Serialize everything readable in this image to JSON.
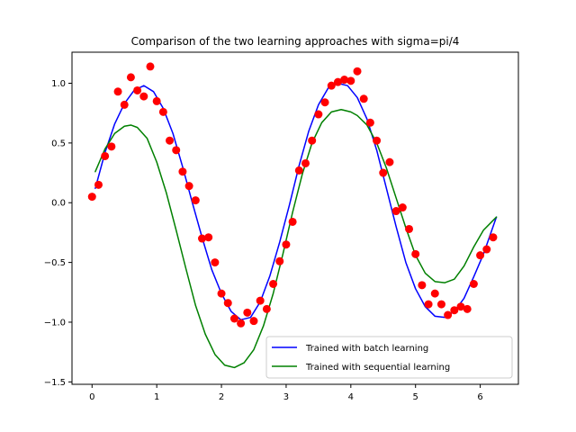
{
  "chart_data": {
    "type": "line",
    "title": "Comparison of the two learning approaches with sigma=pi/4",
    "xlabel": "",
    "ylabel": "",
    "xlim": [
      -0.31,
      6.59
    ],
    "ylim": [
      -1.52,
      1.26
    ],
    "xticks": [
      0,
      1,
      2,
      3,
      4,
      5,
      6
    ],
    "yticks": [
      -1.5,
      -1.0,
      -0.5,
      0.0,
      0.5,
      1.0
    ],
    "ytick_labels": [
      "−1.5",
      "−1.0",
      "−0.5",
      "0.0",
      "0.5",
      "1.0"
    ],
    "grid": false,
    "legend_position": "lower-right",
    "series": [
      {
        "name": "Trained with batch learning",
        "kind": "line",
        "color": "#0000ff",
        "x": [
          0.05,
          0.2,
          0.35,
          0.5,
          0.65,
          0.8,
          0.95,
          1.1,
          1.25,
          1.4,
          1.55,
          1.7,
          1.85,
          2.0,
          2.15,
          2.3,
          2.45,
          2.6,
          2.75,
          2.9,
          3.05,
          3.2,
          3.35,
          3.5,
          3.65,
          3.8,
          3.95,
          4.1,
          4.25,
          4.4,
          4.55,
          4.7,
          4.85,
          5.0,
          5.15,
          5.3,
          5.45,
          5.6,
          5.75,
          5.9,
          6.05,
          6.25
        ],
        "y": [
          0.12,
          0.42,
          0.66,
          0.83,
          0.94,
          0.98,
          0.93,
          0.79,
          0.58,
          0.3,
          0.0,
          -0.29,
          -0.56,
          -0.76,
          -0.91,
          -0.98,
          -0.96,
          -0.83,
          -0.61,
          -0.33,
          -0.02,
          0.31,
          0.6,
          0.82,
          0.96,
          1.0,
          0.98,
          0.88,
          0.7,
          0.44,
          0.12,
          -0.2,
          -0.5,
          -0.72,
          -0.87,
          -0.95,
          -0.96,
          -0.91,
          -0.8,
          -0.62,
          -0.43,
          -0.12
        ]
      },
      {
        "name": "Trained with sequential learning",
        "kind": "line",
        "color": "#008000",
        "x": [
          0.05,
          0.2,
          0.35,
          0.5,
          0.6,
          0.7,
          0.85,
          1.0,
          1.15,
          1.3,
          1.45,
          1.6,
          1.75,
          1.9,
          2.05,
          2.2,
          2.35,
          2.5,
          2.65,
          2.8,
          2.95,
          3.1,
          3.25,
          3.4,
          3.55,
          3.7,
          3.85,
          4.0,
          4.1,
          4.25,
          4.4,
          4.55,
          4.7,
          4.85,
          5.0,
          5.15,
          5.3,
          5.45,
          5.6,
          5.75,
          5.9,
          6.05,
          6.25
        ],
        "y": [
          0.26,
          0.45,
          0.58,
          0.64,
          0.65,
          0.63,
          0.54,
          0.34,
          0.08,
          -0.23,
          -0.55,
          -0.86,
          -1.1,
          -1.27,
          -1.36,
          -1.38,
          -1.34,
          -1.23,
          -1.03,
          -0.76,
          -0.43,
          -0.08,
          0.24,
          0.5,
          0.67,
          0.76,
          0.78,
          0.76,
          0.73,
          0.65,
          0.5,
          0.29,
          0.04,
          -0.21,
          -0.44,
          -0.59,
          -0.66,
          -0.67,
          -0.64,
          -0.53,
          -0.37,
          -0.23,
          -0.12
        ]
      },
      {
        "name": "",
        "kind": "scatter",
        "color": "#ff0000",
        "x": [
          0.0,
          0.1,
          0.2,
          0.3,
          0.4,
          0.5,
          0.6,
          0.7,
          0.8,
          0.9,
          1.0,
          1.1,
          1.2,
          1.3,
          1.4,
          1.5,
          1.6,
          1.7,
          1.8,
          1.9,
          2.0,
          2.1,
          2.2,
          2.3,
          2.4,
          2.5,
          2.6,
          2.7,
          2.8,
          2.9,
          3.0,
          3.1,
          3.2,
          3.3,
          3.4,
          3.5,
          3.6,
          3.7,
          3.8,
          3.9,
          4.0,
          4.1,
          4.2,
          4.3,
          4.4,
          4.5,
          4.6,
          4.7,
          4.8,
          4.9,
          5.0,
          5.1,
          5.2,
          5.3,
          5.4,
          5.5,
          5.6,
          5.7,
          5.8,
          5.9,
          6.0,
          6.1,
          6.2
        ],
        "y": [
          0.05,
          0.15,
          0.39,
          0.47,
          0.93,
          0.82,
          1.05,
          0.94,
          0.89,
          1.14,
          0.85,
          0.76,
          0.52,
          0.44,
          0.26,
          0.14,
          0.02,
          -0.3,
          -0.29,
          -0.5,
          -0.76,
          -0.84,
          -0.97,
          -1.01,
          -0.92,
          -0.99,
          -0.82,
          -0.89,
          -0.68,
          -0.49,
          -0.35,
          -0.16,
          0.27,
          0.33,
          0.52,
          0.74,
          0.84,
          0.98,
          1.01,
          1.03,
          1.02,
          1.1,
          0.87,
          0.67,
          0.52,
          0.25,
          0.34,
          -0.07,
          -0.04,
          -0.22,
          -0.43,
          -0.69,
          -0.85,
          -0.76,
          -0.85,
          -0.94,
          -0.9,
          -0.87,
          -0.89,
          -0.68,
          -0.44,
          -0.39,
          -0.29
        ]
      }
    ]
  }
}
